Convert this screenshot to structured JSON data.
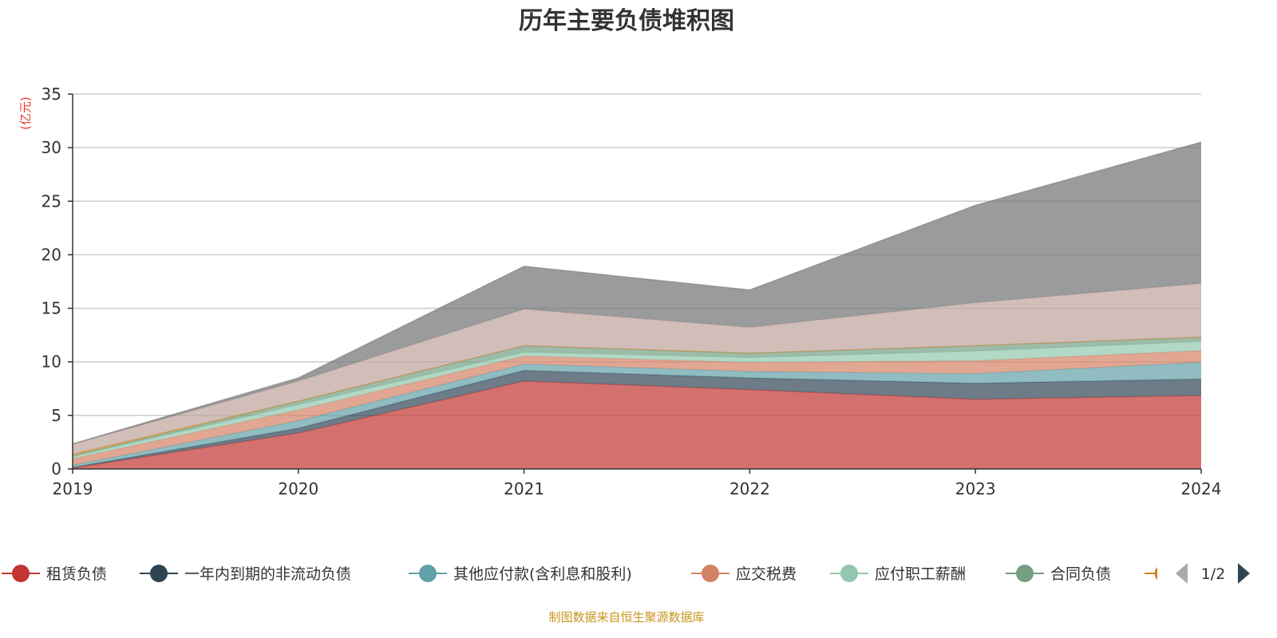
{
  "chart_data": {
    "type": "area",
    "stacked": true,
    "title": "历年主要负债堆积图",
    "ylabel": "(亿元)",
    "xlabel": "",
    "categories": [
      "2019",
      "2020",
      "2021",
      "2022",
      "2023",
      "2024"
    ],
    "ylim": [
      0,
      35
    ],
    "yticks": [
      "0",
      "5",
      "10",
      "15",
      "20",
      "25",
      "30",
      "35"
    ],
    "grid": true,
    "legend_position": "bottom",
    "legend_page": "1/2",
    "series": [
      {
        "name": "租赁负债",
        "color": "#c23531",
        "values": [
          0.1,
          3.35,
          8.2,
          7.4,
          6.5,
          6.85
        ]
      },
      {
        "name": "一年内到期的非流动负债",
        "color": "#2f4554",
        "values": [
          0.05,
          0.45,
          1.0,
          1.1,
          1.5,
          1.55
        ]
      },
      {
        "name": "其他应付款(含利息和股利)",
        "color": "#61a0a8",
        "values": [
          0.2,
          0.7,
          0.6,
          0.6,
          0.9,
          1.55
        ]
      },
      {
        "name": "应交税费",
        "color": "#d48265",
        "values": [
          0.6,
          1.0,
          0.75,
          0.85,
          1.2,
          1.1
        ]
      },
      {
        "name": "应付职工薪酬",
        "color": "#91c7ae",
        "values": [
          0.2,
          0.5,
          0.35,
          0.45,
          0.9,
          0.85
        ]
      },
      {
        "name": "合同负债",
        "color": "#749f83",
        "values": [
          0.1,
          0.3,
          0.6,
          0.4,
          0.5,
          0.4
        ]
      },
      {
        "color": "#ca8622",
        "values": [
          0.15,
          0.05,
          0.02,
          0.02,
          0.02,
          0.02
        ]
      },
      {
        "color": "#bda29a",
        "values": [
          0.9,
          1.85,
          3.4,
          2.4,
          4.0,
          5.0
        ]
      },
      {
        "color": "#6e7074",
        "values": [
          0.05,
          0.3,
          4.0,
          3.5,
          9.1,
          13.2
        ]
      }
    ]
  },
  "source_note": "制图数据来自恒生聚源数据库"
}
